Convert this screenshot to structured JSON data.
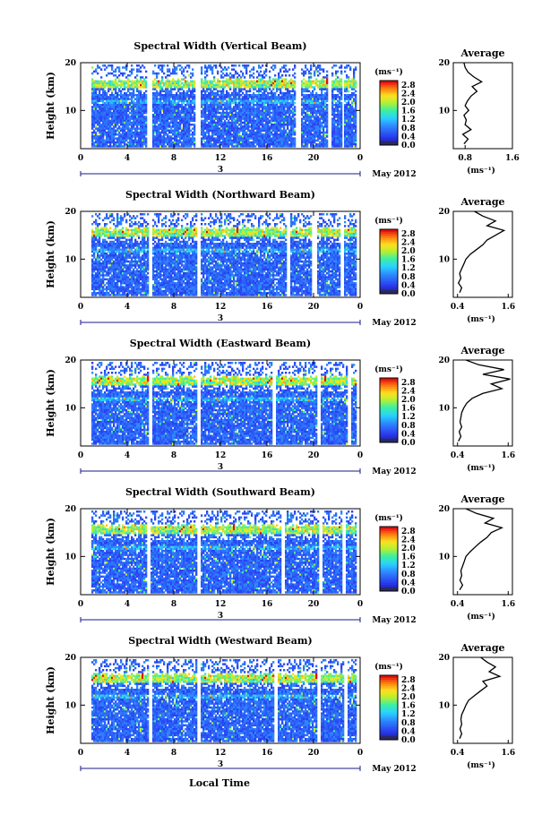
{
  "figure": {
    "date_label": "May 2012",
    "day_label": "3",
    "xaxis_label": "Local Time"
  },
  "chart_data": [
    {
      "type": "heatmap",
      "title": "Spectral Width (Vertical Beam)",
      "ylabel": "Height (km)",
      "x_ticks": [
        "0",
        "4",
        "8",
        "12",
        "16",
        "20",
        "0"
      ],
      "y_ticks": [
        "20",
        "10"
      ],
      "xlim": [
        0,
        24
      ],
      "ylim": [
        2,
        20
      ],
      "colorbar": {
        "unit": "(ms⁻¹)",
        "ticks": [
          "2.8",
          "2.4",
          "2.0",
          "1.6",
          "1.2",
          "0.8",
          "0.4",
          "0.0"
        ],
        "range": [
          0,
          3.0
        ]
      },
      "profile": {
        "title": "Average",
        "xlabel": "(ms⁻¹)",
        "x_ticks": [
          "0.8",
          "1.6"
        ],
        "xlim": [
          0.6,
          1.6
        ],
        "y_ticks": [
          "20",
          "10"
        ],
        "heights": [
          3,
          4,
          5,
          6,
          7,
          8,
          9,
          10,
          11,
          12,
          13,
          14,
          15,
          16,
          17,
          18,
          19,
          20
        ],
        "values": [
          0.78,
          0.85,
          0.76,
          0.9,
          0.8,
          0.82,
          0.78,
          0.86,
          0.8,
          0.84,
          0.9,
          1.0,
          0.92,
          1.08,
          0.95,
          0.85,
          0.8,
          0.78
        ]
      }
    },
    {
      "type": "heatmap",
      "title": "Spectral Width (Northward Beam)",
      "ylabel": "Height (km)",
      "x_ticks": [
        "0",
        "4",
        "8",
        "12",
        "16",
        "20",
        "0"
      ],
      "y_ticks": [
        "20",
        "10"
      ],
      "xlim": [
        0,
        24
      ],
      "ylim": [
        2,
        20
      ],
      "colorbar": {
        "unit": "(ms⁻¹)",
        "ticks": [
          "2.8",
          "2.4",
          "2.0",
          "1.6",
          "1.2",
          "0.8",
          "0.4",
          "0.0"
        ],
        "range": [
          0,
          3.0
        ]
      },
      "profile": {
        "title": "Average",
        "xlabel": "(ms⁻¹)",
        "x_ticks": [
          "0.4",
          "1.6"
        ],
        "xlim": [
          0.3,
          1.7
        ],
        "y_ticks": [
          "20",
          "10"
        ],
        "heights": [
          3,
          4,
          5,
          6,
          7,
          8,
          9,
          10,
          11,
          12,
          13,
          14,
          15,
          16,
          17,
          18,
          19,
          20
        ],
        "values": [
          0.45,
          0.5,
          0.42,
          0.48,
          0.45,
          0.5,
          0.55,
          0.6,
          0.7,
          0.85,
          1.0,
          1.1,
          1.3,
          1.5,
          1.1,
          1.3,
          1.0,
          0.8
        ]
      }
    },
    {
      "type": "heatmap",
      "title": "Spectral Width (Eastward Beam)",
      "ylabel": "Height (km)",
      "x_ticks": [
        "0",
        "4",
        "8",
        "12",
        "16",
        "20",
        "0"
      ],
      "y_ticks": [
        "20",
        "10"
      ],
      "xlim": [
        0,
        24
      ],
      "ylim": [
        2,
        20
      ],
      "colorbar": {
        "unit": "(ms⁻¹)",
        "ticks": [
          "2.8",
          "2.4",
          "2.0",
          "1.6",
          "1.2",
          "0.8",
          "0.4",
          "0.0"
        ],
        "range": [
          0,
          3.0
        ]
      },
      "profile": {
        "title": "Average",
        "xlabel": "(ms⁻¹)",
        "x_ticks": [
          "0.4",
          "1.6"
        ],
        "xlim": [
          0.3,
          1.7
        ],
        "y_ticks": [
          "20",
          "10"
        ],
        "heights": [
          3,
          4,
          5,
          6,
          7,
          8,
          9,
          10,
          11,
          12,
          13,
          14,
          15,
          16,
          17,
          18,
          19,
          20
        ],
        "values": [
          0.42,
          0.48,
          0.44,
          0.5,
          0.46,
          0.48,
          0.5,
          0.55,
          0.62,
          0.75,
          1.0,
          1.45,
          1.2,
          1.65,
          1.0,
          1.5,
          0.9,
          0.6
        ]
      }
    },
    {
      "type": "heatmap",
      "title": "Spectral Width (Southward Beam)",
      "ylabel": "Height (km)",
      "x_ticks": [
        "0",
        "4",
        "8",
        "12",
        "16",
        "20",
        "0"
      ],
      "y_ticks": [
        "20",
        "10"
      ],
      "xlim": [
        0,
        24
      ],
      "ylim": [
        2,
        20
      ],
      "colorbar": {
        "unit": "(ms⁻¹)",
        "ticks": [
          "2.8",
          "2.4",
          "2.0",
          "1.6",
          "1.2",
          "0.8",
          "0.4",
          "0.0"
        ],
        "range": [
          0,
          3.0
        ]
      },
      "profile": {
        "title": "Average",
        "xlabel": "(ms⁻¹)",
        "x_ticks": [
          "0.4",
          "1.6"
        ],
        "xlim": [
          0.3,
          1.7
        ],
        "y_ticks": [
          "20",
          "10"
        ],
        "heights": [
          3,
          4,
          5,
          6,
          7,
          8,
          9,
          10,
          11,
          12,
          13,
          14,
          15,
          16,
          17,
          18,
          19,
          20
        ],
        "values": [
          0.45,
          0.52,
          0.46,
          0.5,
          0.48,
          0.52,
          0.56,
          0.6,
          0.7,
          0.82,
          0.95,
          1.1,
          1.2,
          1.45,
          1.05,
          1.25,
          0.85,
          0.6
        ]
      }
    },
    {
      "type": "heatmap",
      "title": "Spectral Width (Westward Beam)",
      "ylabel": "Height (km)",
      "x_ticks": [
        "0",
        "4",
        "8",
        "12",
        "16",
        "20",
        "0"
      ],
      "y_ticks": [
        "20",
        "10"
      ],
      "xlim": [
        0,
        24
      ],
      "ylim": [
        2,
        20
      ],
      "colorbar": {
        "unit": "(ms⁻¹)",
        "ticks": [
          "2.8",
          "2.4",
          "2.0",
          "1.6",
          "1.2",
          "0.8",
          "0.4",
          "0.0"
        ],
        "range": [
          0,
          3.0
        ]
      },
      "profile": {
        "title": "Average",
        "xlabel": "(ms⁻¹)",
        "x_ticks": [
          "0.4",
          "1.6"
        ],
        "xlim": [
          0.3,
          1.7
        ],
        "y_ticks": [
          "20",
          "10"
        ],
        "heights": [
          3,
          4,
          5,
          6,
          7,
          8,
          9,
          10,
          11,
          12,
          13,
          14,
          15,
          16,
          17,
          18,
          19,
          20
        ],
        "values": [
          0.45,
          0.5,
          0.46,
          0.5,
          0.48,
          0.5,
          0.55,
          0.6,
          0.66,
          0.8,
          0.95,
          1.1,
          1.0,
          1.4,
          1.15,
          1.3,
          1.1,
          0.95
        ]
      }
    }
  ]
}
